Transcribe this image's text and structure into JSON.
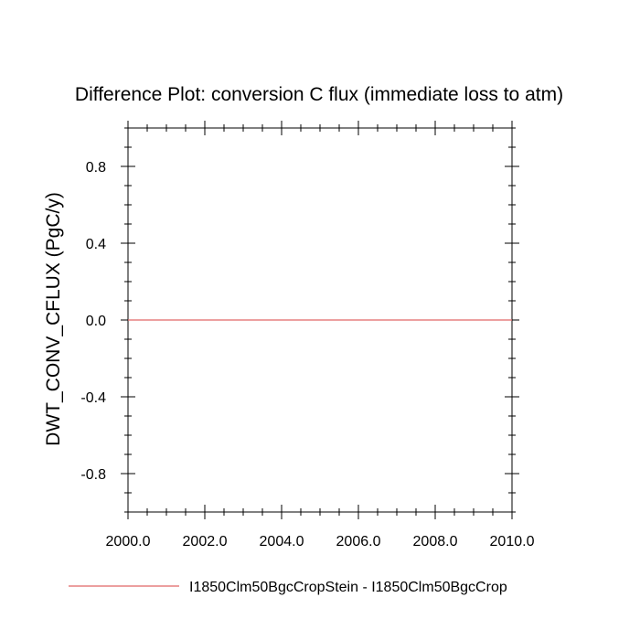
{
  "chart_data": {
    "type": "line",
    "title": "Difference Plot: conversion C flux (immediate loss to atm)",
    "ylabel": "DWT_CONV_CFLUX  (PgC/y)",
    "xlabel": "",
    "xlim": [
      2000.0,
      2010.0
    ],
    "ylim": [
      -1.0,
      1.0
    ],
    "x_ticks": [
      2000.0,
      2002.0,
      2004.0,
      2006.0,
      2008.0,
      2010.0
    ],
    "x_tick_labels": [
      "2000.0",
      "2002.0",
      "2004.0",
      "2006.0",
      "2008.0",
      "2010.0"
    ],
    "y_ticks": [
      0.8,
      0.4,
      0.0,
      -0.4,
      -0.8
    ],
    "y_tick_labels": [
      "0.8",
      "0.4",
      "0.0",
      "-0.4",
      "-0.8"
    ],
    "grid": false,
    "legend_placement": "bottom",
    "series": [
      {
        "name": "I1850Clm50BgcCropStein - I1850Clm50BgcCrop",
        "color": "#e06666",
        "x": [
          2000.0,
          2010.0
        ],
        "y": [
          0.0,
          0.0
        ]
      }
    ]
  }
}
